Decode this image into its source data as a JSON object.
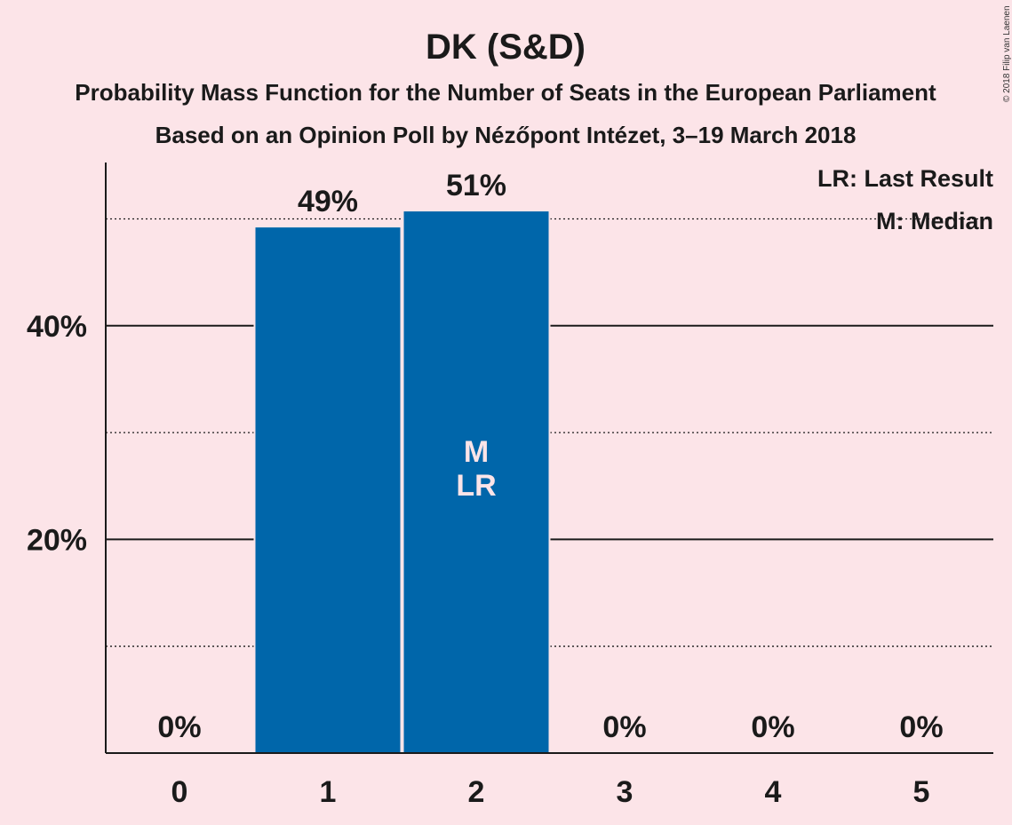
{
  "chart_data": {
    "type": "bar",
    "title": "DK (S&D)",
    "subtitle_lines": [
      "Probability Mass Function for the Number of Seats in the European Parliament",
      "Based on an Opinion Poll by Nézőpont Intézet, 3–19 March 2018"
    ],
    "categories": [
      "0",
      "1",
      "2",
      "3",
      "4",
      "5"
    ],
    "values": [
      0,
      49.2,
      50.7,
      0,
      0,
      0
    ],
    "value_labels": [
      "0%",
      "49%",
      "51%",
      "0%",
      "0%",
      "0%"
    ],
    "bar_color": "#0066aa",
    "ylim": [
      0,
      55
    ],
    "yticks": [
      {
        "value": 20,
        "label": "20%"
      },
      {
        "value": 40,
        "label": "40%"
      }
    ],
    "minor_gridlines": [
      10,
      30,
      50
    ],
    "bar_markers": [
      {
        "category": "2",
        "lines": [
          "M",
          "LR"
        ]
      }
    ],
    "legend": {
      "position": "top-right",
      "items": [
        "LR: Last Result",
        "M: Median"
      ]
    },
    "copyright": "© 2018 Filip van Laenen"
  }
}
